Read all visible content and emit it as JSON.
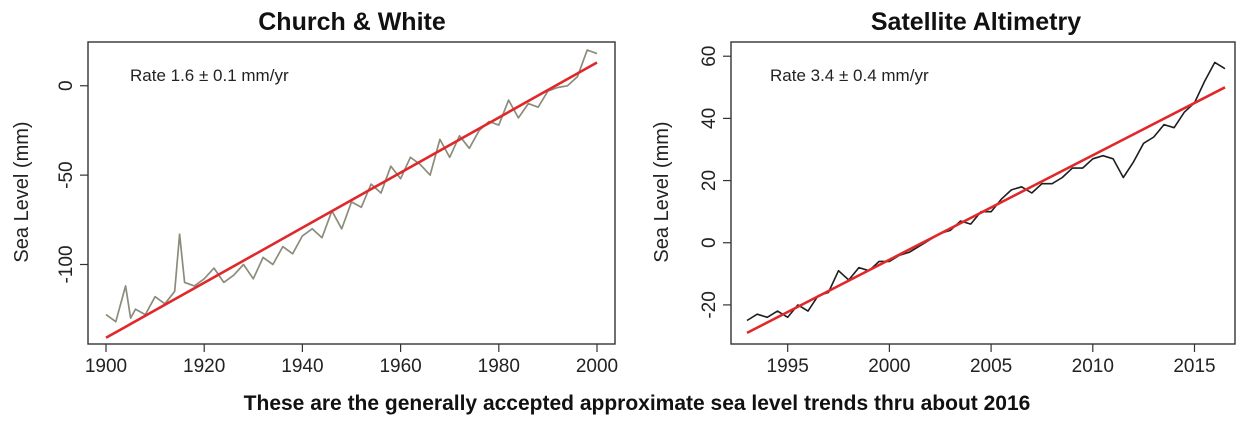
{
  "caption": "These are the generally accepted approximate sea level trends thru about 2016",
  "chart_data": [
    {
      "type": "line",
      "title": "Church & White",
      "ylabel": "Sea Level (mm)",
      "xlabel": "",
      "annotation": "Rate 1.6 ± 0.1 mm/yr",
      "xlim": [
        1900,
        2000
      ],
      "ylim": [
        -140,
        20
      ],
      "x_ticks": [
        1900,
        1920,
        1940,
        1960,
        1980,
        2000
      ],
      "y_ticks": [
        -100,
        -50,
        0
      ],
      "grid": false,
      "colors": {
        "observed": "#8c8c7c",
        "trend": "#e0282b"
      },
      "trend": {
        "x": [
          1900,
          2000
        ],
        "y": [
          -141,
          13
        ]
      },
      "series": [
        {
          "x": [
            1900,
            1902,
            1904,
            1905,
            1906,
            1908,
            1910,
            1912,
            1914,
            1915,
            1916,
            1918,
            1920,
            1922,
            1924,
            1926,
            1928,
            1930,
            1932,
            1934,
            1936,
            1938,
            1940,
            1942,
            1944,
            1946,
            1948,
            1950,
            1952,
            1954,
            1956,
            1958,
            1960,
            1962,
            1964,
            1966,
            1968,
            1970,
            1972,
            1974,
            1976,
            1978,
            1980,
            1982,
            1984,
            1986,
            1988,
            1990,
            1992,
            1994,
            1996,
            1998,
            2000
          ],
          "y": [
            -128,
            -132,
            -112,
            -130,
            -125,
            -128,
            -118,
            -122,
            -115,
            -83,
            -110,
            -112,
            -108,
            -102,
            -110,
            -106,
            -100,
            -108,
            -96,
            -100,
            -90,
            -94,
            -84,
            -80,
            -85,
            -70,
            -80,
            -65,
            -68,
            -55,
            -60,
            -45,
            -52,
            -40,
            -44,
            -50,
            -30,
            -40,
            -28,
            -35,
            -25,
            -20,
            -22,
            -8,
            -18,
            -10,
            -12,
            -3,
            -1,
            0,
            5,
            20,
            18
          ]
        }
      ]
    },
    {
      "type": "line",
      "title": "Satellite Altimetry",
      "ylabel": "Sea Level (mm)",
      "xlabel": "",
      "annotation": "Rate 3.4 ± 0.4 mm/yr",
      "xlim": [
        1993,
        2016.5
      ],
      "ylim": [
        -30,
        62
      ],
      "x_ticks": [
        1995,
        2000,
        2005,
        2010,
        2015
      ],
      "y_ticks": [
        -20,
        0,
        20,
        40,
        60
      ],
      "grid": false,
      "colors": {
        "observed": "#1e1e1e",
        "trend": "#e0282b"
      },
      "trend": {
        "x": [
          1993,
          2016.5
        ],
        "y": [
          -29,
          50
        ]
      },
      "series": [
        {
          "x": [
            1993,
            1993.5,
            1994,
            1994.5,
            1995,
            1995.5,
            1996,
            1996.5,
            1997,
            1997.5,
            1998,
            1998.5,
            1999,
            1999.5,
            2000,
            2000.5,
            2001,
            2001.5,
            2002,
            2002.5,
            2003,
            2003.5,
            2004,
            2004.5,
            2005,
            2005.5,
            2006,
            2006.5,
            2007,
            2007.5,
            2008,
            2008.5,
            2009,
            2009.5,
            2010,
            2010.5,
            2011,
            2011.5,
            2012,
            2012.5,
            2013,
            2013.5,
            2014,
            2014.5,
            2015,
            2015.5,
            2016,
            2016.5
          ],
          "y": [
            -25,
            -23,
            -24,
            -22,
            -24,
            -20,
            -22,
            -17,
            -16,
            -9,
            -12,
            -8,
            -9,
            -6,
            -6,
            -4,
            -3,
            -1,
            1,
            3,
            4,
            7,
            6,
            10,
            10,
            14,
            17,
            18,
            16,
            19,
            19,
            21,
            24,
            24,
            27,
            28,
            27,
            21,
            26,
            32,
            34,
            38,
            37,
            42,
            45,
            52,
            58,
            56
          ]
        }
      ]
    }
  ]
}
